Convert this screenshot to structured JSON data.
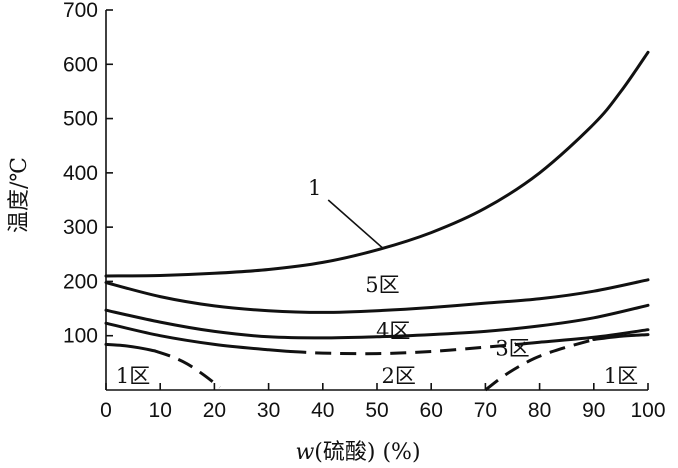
{
  "chart_data": {
    "type": "line",
    "title": "",
    "xlabel_var": "w",
    "xlabel_rest": "(硫酸) (%)",
    "ylabel": "温度/℃",
    "xlim": [
      0,
      100
    ],
    "ylim": [
      0,
      700
    ],
    "xticks": [
      0,
      10,
      20,
      30,
      40,
      50,
      60,
      70,
      80,
      90,
      100
    ],
    "yticks": [
      100,
      200,
      300,
      400,
      500,
      600,
      700
    ],
    "grid": false,
    "series": [
      {
        "name": "1",
        "style": "solid",
        "x": [
          0,
          10,
          20,
          30,
          40,
          50,
          60,
          70,
          80,
          90,
          95,
          100
        ],
        "y": [
          210,
          211,
          215,
          222,
          235,
          258,
          290,
          335,
          400,
          490,
          550,
          622
        ]
      },
      {
        "style": "solid",
        "x": [
          0,
          10,
          20,
          30,
          40,
          50,
          60,
          70,
          80,
          90,
          100
        ],
        "y": [
          198,
          172,
          155,
          146,
          143,
          146,
          152,
          160,
          168,
          182,
          203
        ]
      },
      {
        "style": "solid",
        "x": [
          0,
          10,
          20,
          30,
          40,
          50,
          60,
          70,
          80,
          90,
          100
        ],
        "y": [
          147,
          125,
          108,
          98,
          96,
          98,
          102,
          108,
          118,
          133,
          156
        ]
      },
      {
        "style": "solid",
        "x": [
          0,
          10,
          20,
          30,
          34
        ],
        "y": [
          123,
          100,
          84,
          74,
          71
        ]
      },
      {
        "style": "dashed",
        "x": [
          34,
          40,
          50,
          60,
          70,
          76
        ],
        "y": [
          71,
          68,
          67,
          71,
          79,
          84
        ]
      },
      {
        "style": "solid",
        "x": [
          76,
          80,
          90,
          100
        ],
        "y": [
          84,
          88,
          97,
          111
        ]
      },
      {
        "style": "solid",
        "x": [
          0,
          3,
          6,
          9
        ],
        "y": [
          84,
          82,
          78,
          72
        ]
      },
      {
        "style": "dashed",
        "x": [
          9,
          12,
          15,
          18,
          21
        ],
        "y": [
          72,
          62,
          48,
          28,
          5
        ]
      },
      {
        "style": "dashed",
        "x": [
          70,
          74,
          79,
          84,
          90
        ],
        "y": [
          0,
          30,
          58,
          76,
          93
        ]
      },
      {
        "style": "solid",
        "x": [
          90,
          95,
          100
        ],
        "y": [
          93,
          99,
          102
        ]
      }
    ],
    "annotations": [
      {
        "text": "1",
        "x": 38.5,
        "y": 372
      },
      {
        "text": "5区",
        "x": 51,
        "y": 193
      },
      {
        "text": "4区",
        "x": 53,
        "y": 109
      },
      {
        "text": "3区",
        "x": 75,
        "y": 76
      },
      {
        "text": "1区",
        "x": 5,
        "y": 26
      },
      {
        "text": "2区",
        "x": 54,
        "y": 26
      },
      {
        "text": "1区",
        "x": 95,
        "y": 26
      }
    ],
    "leader_line": {
      "from": [
        41,
        350
      ],
      "to": [
        51,
        262
      ]
    }
  }
}
